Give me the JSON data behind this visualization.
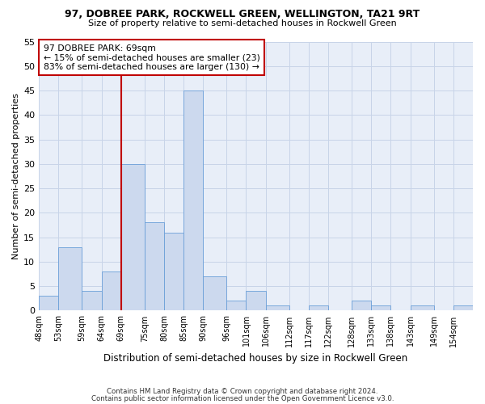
{
  "title1": "97, DOBREE PARK, ROCKWELL GREEN, WELLINGTON, TA21 9RT",
  "title2": "Size of property relative to semi-detached houses in Rockwell Green",
  "xlabel": "Distribution of semi-detached houses by size in Rockwell Green",
  "ylabel": "Number of semi-detached properties",
  "footer1": "Contains HM Land Registry data © Crown copyright and database right 2024.",
  "footer2": "Contains public sector information licensed under the Open Government Licence v3.0.",
  "annotation_title": "97 DOBREE PARK: 69sqm",
  "annotation_line1": "← 15% of semi-detached houses are smaller (23)",
  "annotation_line2": "83% of semi-detached houses are larger (130) →",
  "bar_edges": [
    48,
    53,
    59,
    64,
    69,
    75,
    80,
    85,
    90,
    96,
    101,
    106,
    112,
    117,
    122,
    128,
    133,
    138,
    143,
    149,
    154
  ],
  "bar_heights": [
    3,
    13,
    4,
    8,
    30,
    18,
    16,
    45,
    7,
    2,
    4,
    1,
    0,
    1,
    0,
    2,
    1,
    0,
    1,
    0,
    1
  ],
  "bar_labels": [
    "48sqm",
    "53sqm",
    "59sqm",
    "64sqm",
    "69sqm",
    "75sqm",
    "80sqm",
    "85sqm",
    "90sqm",
    "96sqm",
    "101sqm",
    "106sqm",
    "112sqm",
    "117sqm",
    "122sqm",
    "128sqm",
    "133sqm",
    "138sqm",
    "143sqm",
    "149sqm",
    "154sqm"
  ],
  "bar_color": "#ccd9ee",
  "bar_edge_color": "#6a9fd8",
  "vline_color": "#c00000",
  "vline_x": 69,
  "annotation_box_color": "#ffffff",
  "annotation_box_edge": "#c00000",
  "grid_color": "#c8d4e8",
  "bg_color": "#e8eef8",
  "ylim": [
    0,
    55
  ],
  "yticks": [
    0,
    5,
    10,
    15,
    20,
    25,
    30,
    35,
    40,
    45,
    50,
    55
  ]
}
